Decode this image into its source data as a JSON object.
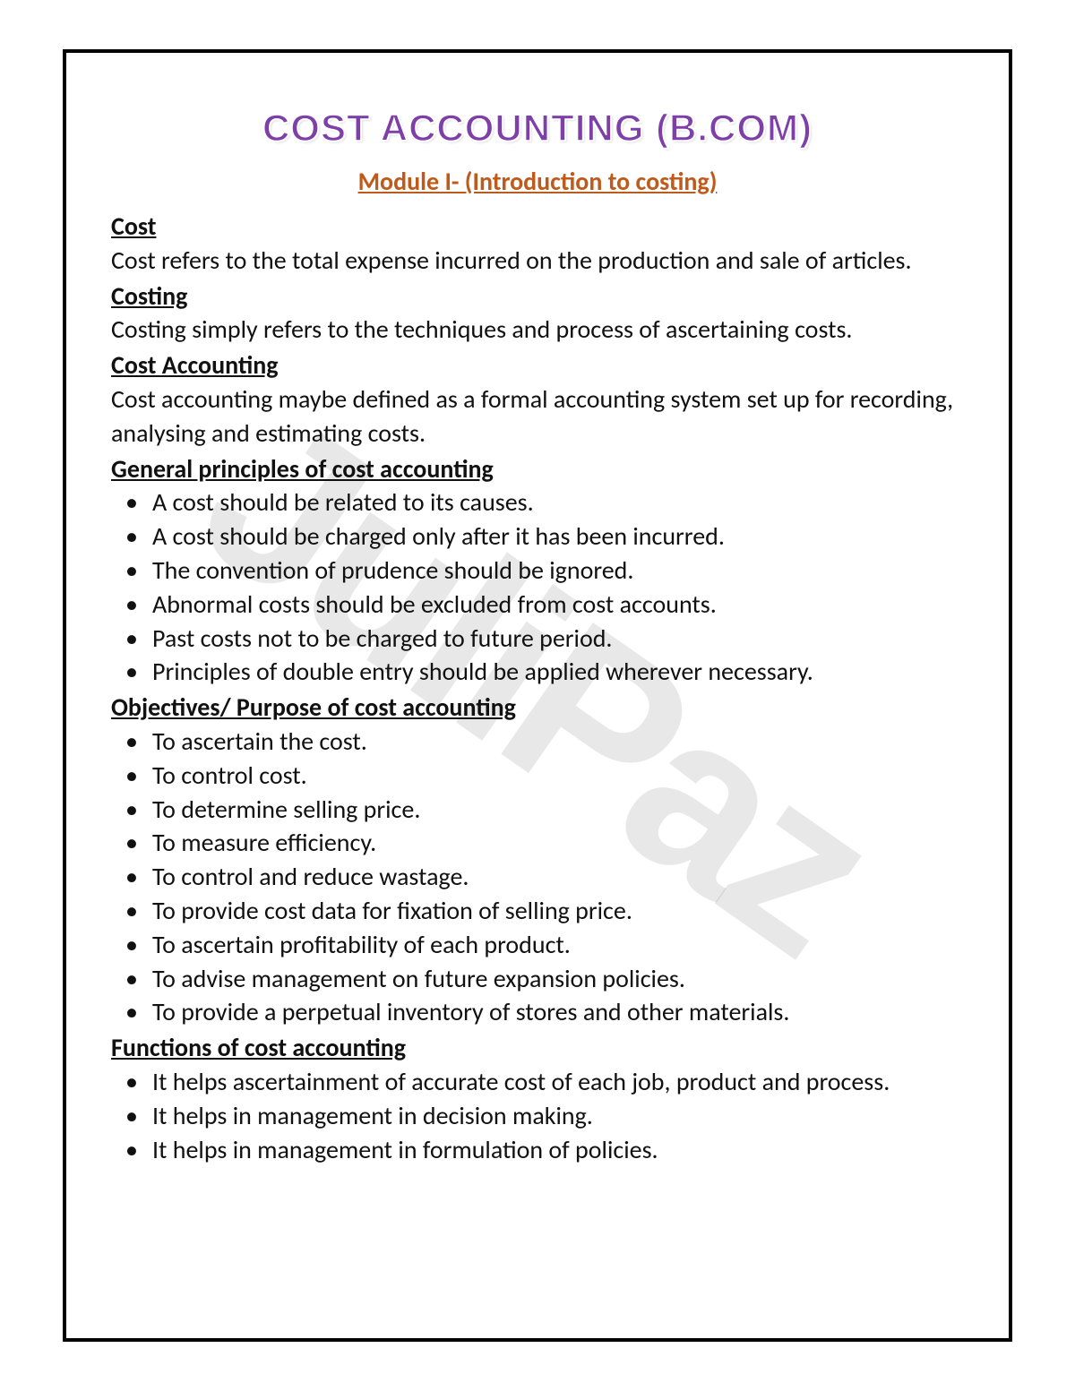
{
  "watermark": "JuliPaz",
  "title": "COST ACCOUNTING (B.COM)",
  "subtitle": "Module I- (Introduction to costing)",
  "colors": {
    "title_color": "#7e3fa8",
    "subtitle_color": "#c05a1a",
    "body_color": "#111111",
    "border_color": "#000000",
    "watermark_color": "rgba(0,0,0,0.09)"
  },
  "typography": {
    "title_fontsize": 42,
    "subtitle_fontsize": 28,
    "body_fontsize": 28,
    "heading_fontsize": 28
  },
  "sections": [
    {
      "heading": "Cost",
      "body": "Cost refers to the total expense incurred on the production and sale of articles."
    },
    {
      "heading": "Costing",
      "body": "Costing simply refers to the techniques and process of ascertaining costs."
    },
    {
      "heading": "Cost Accounting",
      "body": "Cost accounting maybe defined as a formal accounting system set up for recording, analysing and estimating costs."
    },
    {
      "heading": "General principles of cost accounting",
      "bullets": [
        "A cost should be related to its causes.",
        "A cost should be charged only after it has been incurred.",
        "The convention of prudence should be ignored.",
        "Abnormal costs should be excluded from cost accounts.",
        "Past costs not to be charged to future period.",
        "Principles of double entry should be applied wherever necessary."
      ]
    },
    {
      "heading": "Objectives/ Purpose of cost accounting",
      "bullets": [
        "To ascertain the cost.",
        "To control cost.",
        "To determine selling price.",
        "To measure efficiency.",
        "To control and reduce wastage.",
        "To provide cost data for fixation of selling price.",
        "To ascertain profitability of each product.",
        "To advise management on future expansion policies.",
        "To provide a perpetual inventory of stores and other materials."
      ]
    },
    {
      "heading": "Functions of cost accounting",
      "bullets": [
        "It helps ascertainment of accurate cost of each job, product and process.",
        "It helps in management in decision making.",
        "It helps in management in formulation of policies."
      ]
    }
  ]
}
